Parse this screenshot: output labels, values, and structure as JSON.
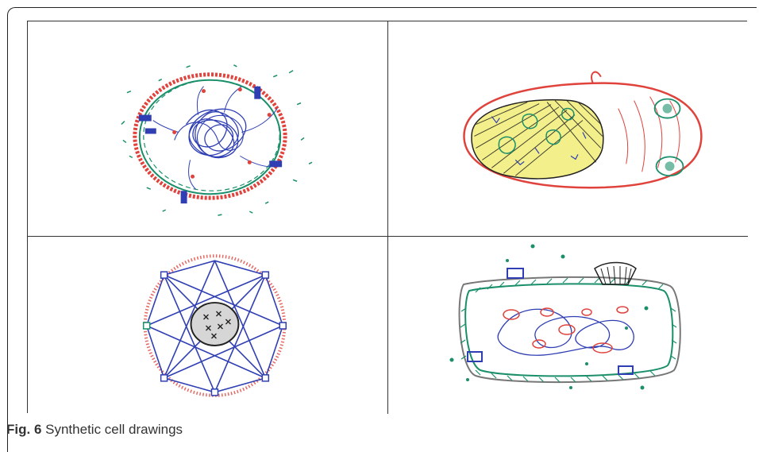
{
  "figure": {
    "label": "Fig. 6",
    "caption": "Synthetic cell drawings"
  },
  "panels": [
    {
      "id": "top-left",
      "depicts": "cell-drawing-tangled-dna"
    },
    {
      "id": "top-right",
      "depicts": "cell-drawing-oval-with-nucleus"
    },
    {
      "id": "bottom-left",
      "depicts": "cell-drawing-star-network"
    },
    {
      "id": "bottom-right",
      "depicts": "cell-drawing-rounded-rectangle"
    }
  ],
  "colors": {
    "blue": "#2f3fb3",
    "red": "#e0423c",
    "green": "#1a8f6a",
    "black": "#222222",
    "yellow": "#f3ef8a"
  }
}
